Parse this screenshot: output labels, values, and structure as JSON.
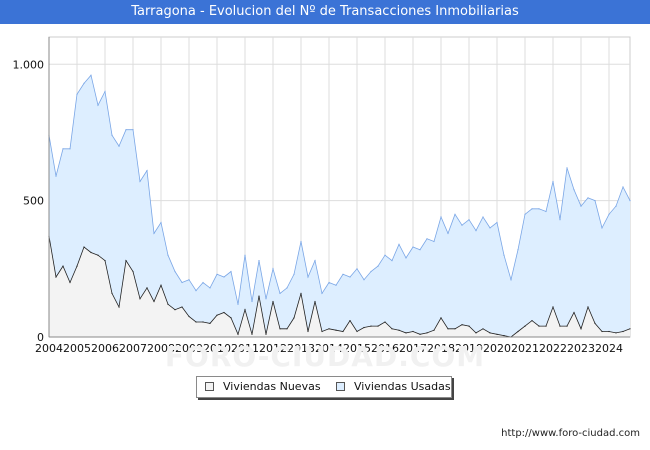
{
  "header": {
    "title": "Tarragona - Evolucion del Nº de Transacciones Inmobiliarias"
  },
  "watermark": "FORO-CIUDAD.COM",
  "footer": {
    "source": "http://www.foro-ciudad.com"
  },
  "colors": {
    "title_bg": "#3b73d6",
    "usadas_fill": "#ddeeff",
    "usadas_line": "#7aa6e6",
    "nuevas_fill": "#f3f3f3",
    "nuevas_line": "#222222",
    "grid": "#dddddd"
  },
  "chart_data": {
    "type": "area",
    "title": "Tarragona - Evolucion del Nº de Transacciones Inmobiliarias",
    "xlabel": "",
    "ylabel": "",
    "x_start": 2004,
    "periods_per_year": 4,
    "xlim": [
      2004,
      2024.75
    ],
    "ylim": [
      0,
      1100
    ],
    "y_ticks": [
      0,
      500,
      1000
    ],
    "y_tick_labels": [
      "0",
      "500",
      "1.000"
    ],
    "x_ticks": [
      2004,
      2005,
      2006,
      2007,
      2008,
      2009,
      2010,
      2011,
      2012,
      2013,
      2014,
      2015,
      2016,
      2017,
      2018,
      2019,
      2020,
      2021,
      2022,
      2023,
      2024
    ],
    "x_tick_labels": [
      "2004",
      "2005",
      "2006",
      "2007",
      "2008",
      "2009",
      "2010",
      "2011",
      "2012",
      "2013",
      "2014",
      "2015",
      "2016",
      "2017",
      "2018",
      "2019",
      "2020",
      "2021",
      "2022",
      "2023",
      "2024"
    ],
    "grid": true,
    "legend": "bottom",
    "series": [
      {
        "name": "Viviendas Nuevas",
        "values": [
          370,
          220,
          260,
          200,
          260,
          330,
          310,
          300,
          280,
          160,
          110,
          280,
          240,
          140,
          180,
          130,
          190,
          120,
          100,
          110,
          75,
          55,
          55,
          50,
          80,
          90,
          70,
          10,
          100,
          10,
          150,
          10,
          130,
          30,
          30,
          70,
          160,
          20,
          130,
          20,
          30,
          25,
          20,
          60,
          20,
          35,
          40,
          40,
          55,
          30,
          25,
          15,
          20,
          10,
          15,
          25,
          70,
          30,
          30,
          45,
          40,
          15,
          30,
          15,
          10,
          5,
          0,
          20,
          40,
          60,
          40,
          40,
          110,
          40,
          40,
          90,
          30,
          110,
          50,
          20,
          20,
          15,
          20,
          30
        ]
      },
      {
        "name": "Viviendas Usadas",
        "values": [
          740,
          590,
          690,
          690,
          890,
          930,
          960,
          850,
          900,
          740,
          700,
          760,
          760,
          570,
          610,
          380,
          420,
          300,
          240,
          200,
          210,
          170,
          200,
          180,
          230,
          220,
          240,
          120,
          300,
          130,
          280,
          140,
          250,
          160,
          180,
          230,
          350,
          220,
          280,
          160,
          200,
          190,
          230,
          220,
          250,
          210,
          240,
          260,
          300,
          280,
          340,
          290,
          330,
          320,
          360,
          350,
          440,
          380,
          450,
          410,
          430,
          390,
          440,
          400,
          420,
          300,
          210,
          320,
          450,
          470,
          470,
          460,
          570,
          430,
          620,
          540,
          480,
          510,
          500,
          400,
          450,
          480,
          550,
          500
        ]
      }
    ]
  }
}
